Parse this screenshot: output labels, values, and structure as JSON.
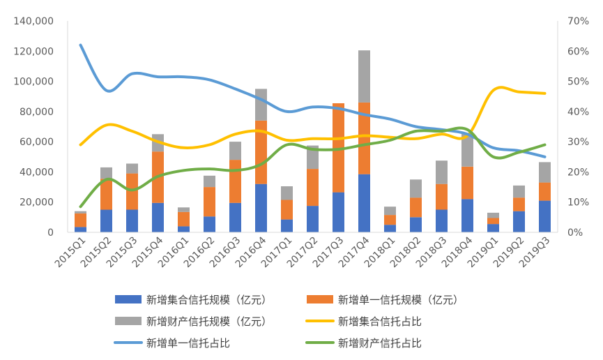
{
  "chart_data": {
    "type": "bar",
    "categories": [
      "2015Q1",
      "2015Q2",
      "2015Q3",
      "2015Q4",
      "2016Q1",
      "2016Q2",
      "2016Q3",
      "2016Q4",
      "2017Q1",
      "2017Q2",
      "2017Q3",
      "2017Q4",
      "2018Q1",
      "2018Q2",
      "2018Q3",
      "2018Q4",
      "2019Q1",
      "2019Q2",
      "2019Q3"
    ],
    "ylim_left": [
      0,
      140000
    ],
    "ylim_right": [
      0,
      0.7
    ],
    "left_ticks": [
      "0",
      "20,000",
      "40,000",
      "60,000",
      "80,000",
      "100,000",
      "120,000",
      "140,000"
    ],
    "right_ticks": [
      "0%",
      "10%",
      "20%",
      "30%",
      "40%",
      "50%",
      "60%",
      "70%"
    ],
    "bar_series": [
      {
        "name": "新增集合信托规模（亿元）",
        "color": "#4472C4",
        "values": [
          3500,
          15000,
          15000,
          19500,
          4000,
          10500,
          19500,
          32000,
          8500,
          17500,
          26500,
          38500,
          5000,
          10000,
          15000,
          22000,
          5500,
          14000,
          21000
        ]
      },
      {
        "name": "新增单一信托规模（亿元）",
        "color": "#ED7D31",
        "values": [
          9000,
          20500,
          24000,
          34000,
          9500,
          19500,
          28500,
          42000,
          13000,
          24500,
          59000,
          47500,
          6500,
          13000,
          17000,
          21500,
          4000,
          9000,
          12000
        ]
      },
      {
        "name": "新增财产信托规模（亿元）",
        "color": "#A5A5A5",
        "values": [
          1500,
          7500,
          6500,
          11500,
          3000,
          7500,
          12000,
          21000,
          9000,
          15500,
          0,
          34500,
          5500,
          12000,
          15500,
          22000,
          3500,
          8000,
          13500
        ]
      }
    ],
    "line_series": [
      {
        "name": "新增集合信托占比",
        "color": "#FFC000",
        "values": [
          0.29,
          0.355,
          0.335,
          0.3,
          0.28,
          0.29,
          0.325,
          0.335,
          0.305,
          0.31,
          0.31,
          0.32,
          0.315,
          0.31,
          0.325,
          0.32,
          0.47,
          0.465,
          0.46
        ]
      },
      {
        "name": "新增单一信托占比",
        "color": "#5B9BD5",
        "values": [
          0.62,
          0.47,
          0.525,
          0.515,
          0.515,
          0.505,
          0.475,
          0.44,
          0.4,
          0.415,
          0.41,
          0.39,
          0.375,
          0.35,
          0.34,
          0.325,
          0.28,
          0.27,
          0.25
        ]
      },
      {
        "name": "新增财产信托占比",
        "color": "#70AD47",
        "values": [
          0.085,
          0.175,
          0.14,
          0.185,
          0.205,
          0.21,
          0.205,
          0.225,
          0.29,
          0.275,
          0.275,
          0.29,
          0.305,
          0.335,
          0.335,
          0.34,
          0.25,
          0.265,
          0.29
        ]
      }
    ],
    "legend": {
      "placement": "bottom",
      "items": [
        {
          "label": "新增集合信托规模（亿元）",
          "kind": "bar",
          "color": "#4472C4"
        },
        {
          "label": "新增单一信托规模（亿元）",
          "kind": "bar",
          "color": "#ED7D31"
        },
        {
          "label": "新增财产信托规模（亿元）",
          "kind": "bar",
          "color": "#A5A5A5"
        },
        {
          "label": "新增集合信托占比",
          "kind": "line",
          "color": "#FFC000"
        },
        {
          "label": "新增单一信托占比",
          "kind": "line",
          "color": "#5B9BD5"
        },
        {
          "label": "新增财产信托占比",
          "kind": "line",
          "color": "#70AD47"
        }
      ]
    },
    "grid": false
  }
}
